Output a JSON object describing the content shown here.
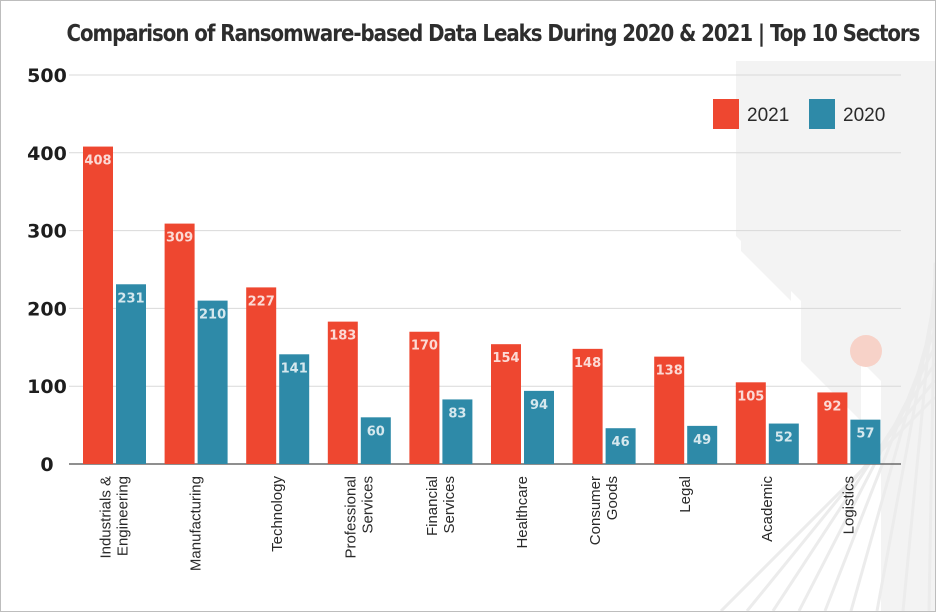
{
  "chart_data": {
    "type": "bar",
    "title": "Comparison of Ransomware-based Data Leaks During 2020 & 2021 | Top 10 Sectors",
    "categories": [
      [
        "Industrials &",
        "Engineering"
      ],
      [
        "Manufacturing"
      ],
      [
        "Technology"
      ],
      [
        "Professional",
        "Services"
      ],
      [
        "Financial",
        "Services"
      ],
      [
        "Healthcare"
      ],
      [
        "Consumer",
        "Goods"
      ],
      [
        "Legal"
      ],
      [
        "Academic"
      ],
      [
        "Logistics"
      ]
    ],
    "series": [
      {
        "name": "2021",
        "color": "#ee4730",
        "values": [
          408,
          309,
          227,
          183,
          170,
          154,
          148,
          138,
          105,
          92
        ]
      },
      {
        "name": "2020",
        "color": "#2e8aa8",
        "values": [
          231,
          210,
          141,
          60,
          83,
          94,
          46,
          49,
          52,
          57
        ]
      }
    ],
    "ylim": [
      0,
      500
    ],
    "yticks": [
      0,
      100,
      200,
      300,
      400,
      500
    ],
    "grid": true,
    "legend_position": "top-right"
  }
}
